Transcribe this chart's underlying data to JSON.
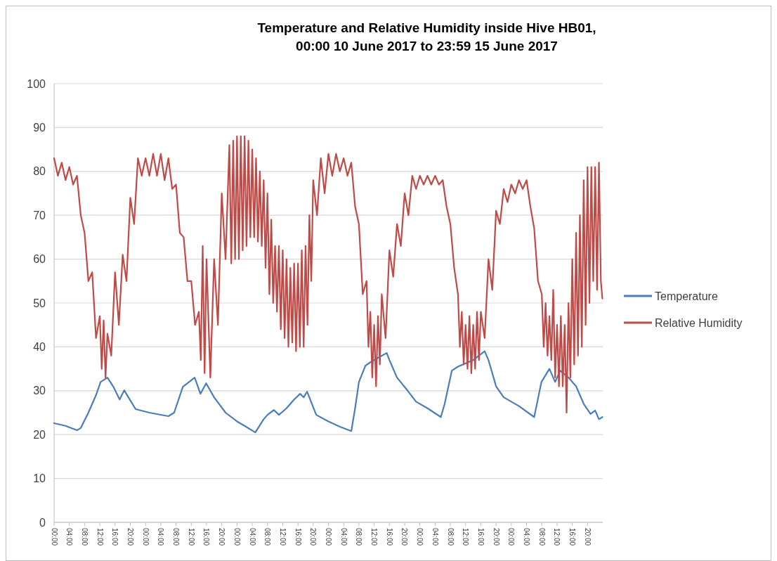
{
  "chart_data": {
    "type": "line",
    "title": "Temperature and Relative Humidity inside Hive HB01,\n00:00 10 June 2017 to 23:59 15 June 2017",
    "xlim": [
      "2017-06-10T00:00",
      "2017-06-16T00:00"
    ],
    "xticks": [
      {
        "value": "2017-06-10T00:00",
        "label": "00:00"
      },
      {
        "value": "2017-06-10T04:00",
        "label": "04:00"
      },
      {
        "value": "2017-06-10T08:00",
        "label": "08:00"
      },
      {
        "value": "2017-06-10T12:00",
        "label": "12:00"
      },
      {
        "value": "2017-06-10T16:00",
        "label": "16:00"
      },
      {
        "value": "2017-06-10T20:00",
        "label": "20:00"
      },
      {
        "value": "2017-06-11T00:00",
        "label": "00:00"
      },
      {
        "value": "2017-06-11T04:00",
        "label": "04:00"
      },
      {
        "value": "2017-06-11T08:00",
        "label": "08:00"
      },
      {
        "value": "2017-06-11T12:00",
        "label": "12:00"
      },
      {
        "value": "2017-06-11T16:00",
        "label": "16:00"
      },
      {
        "value": "2017-06-11T20:00",
        "label": "20:00"
      },
      {
        "value": "2017-06-12T00:00",
        "label": "00:00"
      },
      {
        "value": "2017-06-12T04:00",
        "label": "04:00"
      },
      {
        "value": "2017-06-12T08:00",
        "label": "08:00"
      },
      {
        "value": "2017-06-12T12:00",
        "label": "12:00"
      },
      {
        "value": "2017-06-12T16:00",
        "label": "16:00"
      },
      {
        "value": "2017-06-12T20:00",
        "label": "20:00"
      },
      {
        "value": "2017-06-13T00:00",
        "label": "00:00"
      },
      {
        "value": "2017-06-13T04:00",
        "label": "04:00"
      },
      {
        "value": "2017-06-13T08:00",
        "label": "08:00"
      },
      {
        "value": "2017-06-13T12:00",
        "label": "12:00"
      },
      {
        "value": "2017-06-13T16:00",
        "label": "16:00"
      },
      {
        "value": "2017-06-13T20:00",
        "label": "20:00"
      },
      {
        "value": "2017-06-14T00:00",
        "label": "00:00"
      },
      {
        "value": "2017-06-14T04:00",
        "label": "04:00"
      },
      {
        "value": "2017-06-14T08:00",
        "label": "08:00"
      },
      {
        "value": "2017-06-14T12:00",
        "label": "12:00"
      },
      {
        "value": "2017-06-14T16:00",
        "label": "16:00"
      },
      {
        "value": "2017-06-14T20:00",
        "label": "20:00"
      },
      {
        "value": "2017-06-15T00:00",
        "label": "00:00"
      },
      {
        "value": "2017-06-15T04:00",
        "label": "04:00"
      },
      {
        "value": "2017-06-15T08:00",
        "label": "08:00"
      },
      {
        "value": "2017-06-15T12:00",
        "label": "12:00"
      },
      {
        "value": "2017-06-15T16:00",
        "label": "16:00"
      },
      {
        "value": "2017-06-15T20:00",
        "label": "20:00"
      }
    ],
    "ylim": [
      0,
      100
    ],
    "yticks": [
      0,
      10,
      20,
      30,
      40,
      50,
      60,
      70,
      80,
      90,
      100
    ],
    "grid": "y",
    "legend": "right",
    "marker": "none",
    "line_style": "solid",
    "series": [
      {
        "name": "Temperature",
        "color": "#4a7ebb",
        "x": [
          "2017-06-10T00:00",
          "2017-06-10T03:00",
          "2017-06-10T06:00",
          "2017-06-10T07:00",
          "2017-06-10T09:00",
          "2017-06-10T11:00",
          "2017-06-10T12:12",
          "2017-06-10T14:00",
          "2017-06-10T15:30",
          "2017-06-10T17:12",
          "2017-06-10T18:24",
          "2017-06-10T19:30",
          "2017-06-10T21:24",
          "2017-06-11T01:00",
          "2017-06-11T06:00",
          "2017-06-11T07:30",
          "2017-06-11T09:48",
          "2017-06-11T12:54",
          "2017-06-11T14:24",
          "2017-06-11T15:54",
          "2017-06-11T18:00",
          "2017-06-11T21:00",
          "2017-06-12T00:00",
          "2017-06-12T02:00",
          "2017-06-12T04:48",
          "2017-06-12T07:00",
          "2017-06-12T08:00",
          "2017-06-12T09:42",
          "2017-06-12T11:00",
          "2017-06-12T13:00",
          "2017-06-12T15:00",
          "2017-06-12T16:36",
          "2017-06-12T17:30",
          "2017-06-12T18:24",
          "2017-06-12T20:48",
          "2017-06-13T00:00",
          "2017-06-13T03:00",
          "2017-06-13T06:00",
          "2017-06-13T07:00",
          "2017-06-13T08:00",
          "2017-06-13T09:42",
          "2017-06-13T11:00",
          "2017-06-13T13:00",
          "2017-06-13T15:18",
          "2017-06-13T16:00",
          "2017-06-13T18:00",
          "2017-06-13T20:48",
          "2017-06-13T23:00",
          "2017-06-14T02:00",
          "2017-06-14T05:30",
          "2017-06-14T06:30",
          "2017-06-14T08:24",
          "2017-06-14T10:00",
          "2017-06-14T14:00",
          "2017-06-14T17:00",
          "2017-06-14T18:00",
          "2017-06-14T20:00",
          "2017-06-14T22:00",
          "2017-06-15T02:00",
          "2017-06-15T06:00",
          "2017-06-15T07:54",
          "2017-06-15T10:00",
          "2017-06-15T11:30",
          "2017-06-15T12:48",
          "2017-06-15T15:00",
          "2017-06-15T17:00",
          "2017-06-15T19:00",
          "2017-06-15T20:48",
          "2017-06-15T22:00",
          "2017-06-15T23:00",
          "2017-06-15T23:54"
        ],
        "values": [
          22.6,
          22,
          21,
          21.5,
          25,
          29,
          32,
          33,
          31,
          28,
          30.1,
          28.5,
          25.8,
          25,
          24.2,
          25,
          30.9,
          33,
          29.3,
          31.7,
          28.5,
          25,
          23,
          22,
          20.5,
          23.5,
          24.5,
          25.6,
          24.5,
          26,
          28,
          29.3,
          28.5,
          29.8,
          24.5,
          23,
          21.8,
          20.8,
          26,
          32,
          35.7,
          36.5,
          37.5,
          38.6,
          37,
          33,
          30,
          27.5,
          26,
          24,
          27,
          34.6,
          35.5,
          37,
          39,
          37,
          31,
          28.5,
          26.5,
          24,
          32,
          35,
          32,
          34.6,
          33,
          31,
          27,
          24.7,
          25.5,
          23.5,
          24
        ]
      },
      {
        "name": "Relative Humidity",
        "color": "#be4b48",
        "x": [
          "2017-06-10T00:00",
          "2017-06-10T01:00",
          "2017-06-10T02:00",
          "2017-06-10T03:00",
          "2017-06-10T04:00",
          "2017-06-10T05:00",
          "2017-06-10T06:00",
          "2017-06-10T07:00",
          "2017-06-10T08:00",
          "2017-06-10T09:00",
          "2017-06-10T10:00",
          "2017-06-10T11:00",
          "2017-06-10T12:00",
          "2017-06-10T12:30",
          "2017-06-10T13:00",
          "2017-06-10T13:30",
          "2017-06-10T14:00",
          "2017-06-10T15:00",
          "2017-06-10T16:00",
          "2017-06-10T17:00",
          "2017-06-10T18:00",
          "2017-06-10T19:00",
          "2017-06-10T20:00",
          "2017-06-10T21:00",
          "2017-06-10T22:00",
          "2017-06-10T23:00",
          "2017-06-11T00:00",
          "2017-06-11T01:00",
          "2017-06-11T02:00",
          "2017-06-11T03:00",
          "2017-06-11T04:00",
          "2017-06-11T05:00",
          "2017-06-11T06:00",
          "2017-06-11T07:00",
          "2017-06-11T08:00",
          "2017-06-11T09:00",
          "2017-06-11T10:00",
          "2017-06-11T11:00",
          "2017-06-11T12:00",
          "2017-06-11T13:00",
          "2017-06-11T14:00",
          "2017-06-11T14:30",
          "2017-06-11T15:00",
          "2017-06-11T15:30",
          "2017-06-11T16:00",
          "2017-06-11T17:00",
          "2017-06-11T18:00",
          "2017-06-11T19:00",
          "2017-06-11T20:00",
          "2017-06-11T21:00",
          "2017-06-11T22:00",
          "2017-06-11T22:30",
          "2017-06-11T23:00",
          "2017-06-11T23:30",
          "2017-06-12T00:00",
          "2017-06-12T00:30",
          "2017-06-12T01:00",
          "2017-06-12T01:30",
          "2017-06-12T02:00",
          "2017-06-12T02:30",
          "2017-06-12T03:00",
          "2017-06-12T03:30",
          "2017-06-12T04:00",
          "2017-06-12T04:30",
          "2017-06-12T05:00",
          "2017-06-12T05:30",
          "2017-06-12T06:00",
          "2017-06-12T06:30",
          "2017-06-12T07:00",
          "2017-06-12T07:30",
          "2017-06-12T08:00",
          "2017-06-12T08:30",
          "2017-06-12T09:00",
          "2017-06-12T09:30",
          "2017-06-12T10:00",
          "2017-06-12T10:30",
          "2017-06-12T11:00",
          "2017-06-12T11:30",
          "2017-06-12T12:00",
          "2017-06-12T12:30",
          "2017-06-12T13:00",
          "2017-06-12T13:30",
          "2017-06-12T14:00",
          "2017-06-12T14:30",
          "2017-06-12T15:00",
          "2017-06-12T15:30",
          "2017-06-12T16:00",
          "2017-06-12T16:30",
          "2017-06-12T17:00",
          "2017-06-12T17:30",
          "2017-06-12T18:00",
          "2017-06-12T18:30",
          "2017-06-12T19:00",
          "2017-06-12T19:30",
          "2017-06-12T20:00",
          "2017-06-12T21:00",
          "2017-06-12T22:00",
          "2017-06-12T23:00",
          "2017-06-13T00:00",
          "2017-06-13T01:00",
          "2017-06-13T02:00",
          "2017-06-13T03:00",
          "2017-06-13T04:00",
          "2017-06-13T05:00",
          "2017-06-13T06:00",
          "2017-06-13T07:00",
          "2017-06-13T08:00",
          "2017-06-13T09:00",
          "2017-06-13T10:00",
          "2017-06-13T10:30",
          "2017-06-13T11:00",
          "2017-06-13T11:30",
          "2017-06-13T12:00",
          "2017-06-13T12:30",
          "2017-06-13T13:00",
          "2017-06-13T13:30",
          "2017-06-13T14:00",
          "2017-06-13T15:00",
          "2017-06-13T16:00",
          "2017-06-13T17:00",
          "2017-06-13T18:00",
          "2017-06-13T19:00",
          "2017-06-13T20:00",
          "2017-06-13T21:00",
          "2017-06-13T22:00",
          "2017-06-13T23:00",
          "2017-06-14T00:00",
          "2017-06-14T01:00",
          "2017-06-14T02:00",
          "2017-06-14T03:00",
          "2017-06-14T04:00",
          "2017-06-14T05:00",
          "2017-06-14T06:00",
          "2017-06-14T07:00",
          "2017-06-14T08:00",
          "2017-06-14T09:00",
          "2017-06-14T10:00",
          "2017-06-14T10:30",
          "2017-06-14T11:00",
          "2017-06-14T11:30",
          "2017-06-14T12:00",
          "2017-06-14T12:30",
          "2017-06-14T13:00",
          "2017-06-14T13:30",
          "2017-06-14T14:00",
          "2017-06-14T14:30",
          "2017-06-14T15:00",
          "2017-06-14T15:30",
          "2017-06-14T16:00",
          "2017-06-14T17:00",
          "2017-06-14T18:00",
          "2017-06-14T19:00",
          "2017-06-14T20:00",
          "2017-06-14T21:00",
          "2017-06-14T22:00",
          "2017-06-14T23:00",
          "2017-06-15T00:00",
          "2017-06-15T01:00",
          "2017-06-15T02:00",
          "2017-06-15T03:00",
          "2017-06-15T04:00",
          "2017-06-15T05:00",
          "2017-06-15T06:00",
          "2017-06-15T07:00",
          "2017-06-15T08:00",
          "2017-06-15T08:30",
          "2017-06-15T09:00",
          "2017-06-15T09:30",
          "2017-06-15T10:00",
          "2017-06-15T10:30",
          "2017-06-15T11:00",
          "2017-06-15T11:30",
          "2017-06-15T12:00",
          "2017-06-15T12:30",
          "2017-06-15T13:00",
          "2017-06-15T13:30",
          "2017-06-15T14:00",
          "2017-06-15T14:30",
          "2017-06-15T15:00",
          "2017-06-15T15:30",
          "2017-06-15T16:00",
          "2017-06-15T16:30",
          "2017-06-15T17:00",
          "2017-06-15T17:30",
          "2017-06-15T18:00",
          "2017-06-15T18:30",
          "2017-06-15T19:00",
          "2017-06-15T19:30",
          "2017-06-15T20:00",
          "2017-06-15T20:30",
          "2017-06-15T21:00",
          "2017-06-15T21:30",
          "2017-06-15T22:00",
          "2017-06-15T22:30",
          "2017-06-15T23:00",
          "2017-06-15T23:30",
          "2017-06-15T23:54"
        ],
        "values": [
          83,
          79,
          82,
          78,
          81,
          77,
          79,
          70,
          66,
          55,
          57,
          42,
          47,
          35,
          46,
          33,
          43,
          38,
          57,
          45,
          61,
          55,
          74,
          68,
          83,
          79,
          83,
          79,
          84,
          79,
          84,
          78,
          83,
          76,
          77,
          66,
          65,
          55,
          55,
          45,
          48,
          37,
          63,
          34,
          60,
          33,
          60,
          45,
          75,
          60,
          86,
          59,
          87,
          60,
          88,
          60,
          88,
          62,
          88,
          63,
          87,
          65,
          85,
          65,
          83,
          64,
          80,
          63,
          78,
          58,
          75,
          52,
          69,
          50,
          63,
          48,
          63,
          44,
          62,
          42,
          60,
          40,
          58,
          41,
          59,
          39,
          59,
          40,
          62,
          40,
          63,
          45,
          70,
          55,
          78,
          70,
          83,
          75,
          84,
          79,
          84,
          80,
          83,
          79,
          82,
          72,
          68,
          52,
          55,
          40,
          48,
          33,
          45,
          31,
          47,
          36,
          52,
          42,
          62,
          56,
          68,
          63,
          75,
          70,
          79,
          76,
          79,
          77,
          79,
          77,
          79,
          77,
          78,
          72,
          68,
          58,
          52,
          40,
          48,
          36,
          45,
          35,
          47,
          34,
          45,
          35,
          48,
          37,
          48,
          42,
          60,
          53,
          71,
          68,
          76,
          73,
          77,
          75,
          78,
          76,
          78,
          72,
          67,
          55,
          52,
          40,
          50,
          38,
          47,
          37,
          53,
          33,
          45,
          31,
          47,
          31,
          45,
          25,
          50,
          33,
          60,
          36,
          66,
          38,
          70,
          40,
          78,
          45,
          81,
          50,
          81,
          55,
          81,
          53,
          82,
          55,
          51
        ]
      }
    ]
  }
}
